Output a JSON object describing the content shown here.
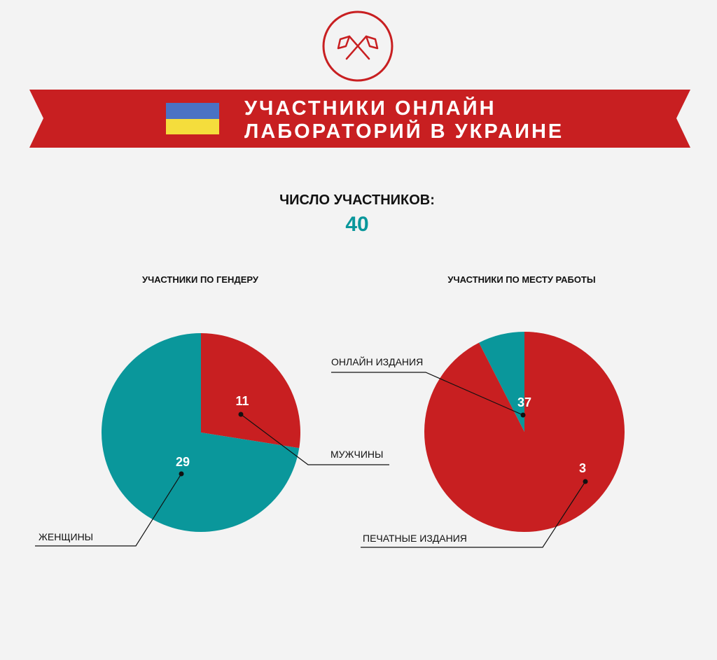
{
  "colors": {
    "red": "#c81f21",
    "teal": "#0a979b",
    "flag_blue": "#4a72c4",
    "flag_yellow": "#f5dd3c",
    "background": "#f3f3f3"
  },
  "logo": {
    "icon": "crossed-flags-icon"
  },
  "banner": {
    "title_line1": "УЧАСТНИКИ ОНЛАЙН",
    "title_line2": "ЛАБОРАТОРИЙ В УКРАИНЕ",
    "flag_icon": "ukraine-flag-icon"
  },
  "total": {
    "label": "ЧИСЛО УЧАСТНИКОВ:",
    "value": "40"
  },
  "chart_data": [
    {
      "type": "pie",
      "title": "УЧАСТНИКИ ПО ГЕНДЕРУ",
      "slices": [
        {
          "label": "МУЖЧИНЫ",
          "value": 11,
          "color": "#c81f21"
        },
        {
          "label": "ЖЕНЩИНЫ",
          "value": 29,
          "color": "#0a979b"
        }
      ]
    },
    {
      "type": "pie",
      "title": "УЧАСТНИКИ ПО МЕСТУ РАБОТЫ",
      "slices": [
        {
          "label": "ОНЛАЙН ИЗДАНИЯ",
          "value": 37,
          "color": "#c81f21"
        },
        {
          "label": "ПЕЧАТНЫЕ ИЗДАНИЯ",
          "value": 3,
          "color": "#0a979b"
        }
      ]
    }
  ]
}
